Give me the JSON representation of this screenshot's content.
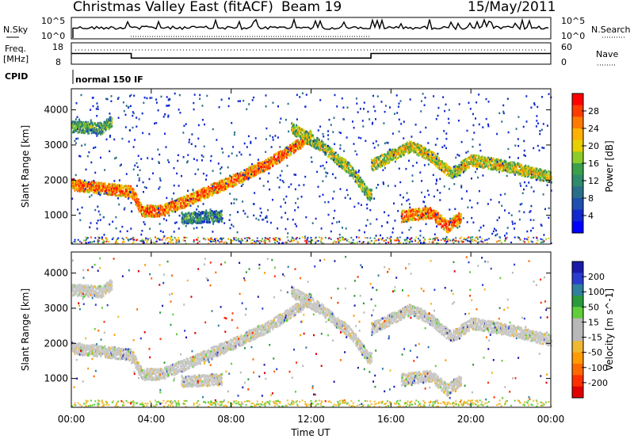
{
  "header": {
    "title": "Christmas Valley East (fitACF)",
    "beam": "Beam 19",
    "date": "15/May/2011"
  },
  "top_panels": {
    "nsky_label": "N.Sky",
    "nsearch_label": "N.Search",
    "count_ticks": [
      "10^5",
      "10^0"
    ],
    "freq_label": "Freq.",
    "freq_unit": "[MHz]",
    "freq_ticks": [
      "18",
      "8"
    ],
    "nave_label": "Nave",
    "nave_ticks": [
      "60",
      "0"
    ],
    "cpid_label": "CPID",
    "cpid_value": "normal 150 IF"
  },
  "x_axis": {
    "label": "Time UT",
    "ticks": [
      "00:00",
      "04:00",
      "08:00",
      "12:00",
      "16:00",
      "20:00",
      "00:00"
    ]
  },
  "power_panel": {
    "ylabel": "Slant Range [km]",
    "yticks": [
      "1000",
      "2000",
      "3000",
      "4000"
    ],
    "colorbar_label": "Power [dB]",
    "colorbar_ticks": [
      "28",
      "24",
      "20",
      "16",
      "12",
      "8",
      "4"
    ],
    "colorbar_colors": [
      "#ff0000",
      "#ff3b00",
      "#ff7a00",
      "#ffb000",
      "#e8d000",
      "#8ccc2a",
      "#3aa04a",
      "#2e8b6b",
      "#2a6f8a",
      "#1f4fb0",
      "#1028d0",
      "#0000ff"
    ]
  },
  "velocity_panel": {
    "ylabel": "Slant Range [km]",
    "yticks": [
      "1000",
      "2000",
      "3000",
      "4000"
    ],
    "colorbar_label": "Velocity [m s^-1]",
    "colorbar_ticks": [
      "200",
      "100",
      "50",
      "15",
      "-15",
      "-50",
      "-100",
      "-200"
    ],
    "colorbar_colors": [
      "#1a1aa8",
      "#2a3ccf",
      "#2f7f9f",
      "#2a9a3c",
      "#5fcf3a",
      "#b8b8b8",
      "#b8b8b8",
      "#f0b830",
      "#ff9a00",
      "#ff6a00",
      "#ff3000",
      "#e00000"
    ]
  },
  "chart_data": {
    "type": "heatmap",
    "x_range_hours": [
      0,
      24
    ],
    "y_range_km": [
      180,
      4600
    ],
    "nsky_step_hours": [
      0,
      24
    ],
    "freq_mhz": [
      {
        "x": 0.0,
        "y": 13.0
      },
      {
        "x": 3.0,
        "y": 13.0
      },
      {
        "x": 3.0,
        "y": 10.5
      },
      {
        "x": 15.0,
        "y": 10.5
      },
      {
        "x": 15.0,
        "y": 13.0
      },
      {
        "x": 24.0,
        "y": 13.0
      }
    ],
    "power_bands": [
      {
        "name": "ground-scatter-morning",
        "points": [
          [
            0.0,
            1900
          ],
          [
            1.5,
            1800
          ],
          [
            3.0,
            1700
          ],
          [
            3.5,
            1150
          ],
          [
            4.5,
            1150
          ],
          [
            6.0,
            1500
          ],
          [
            8.0,
            2000
          ],
          [
            10.0,
            2550
          ],
          [
            12.0,
            3300
          ]
        ],
        "power_db": 26
      },
      {
        "name": "ground-scatter-midday",
        "points": [
          [
            11.0,
            3500
          ],
          [
            12.5,
            3000
          ],
          [
            14.0,
            2300
          ],
          [
            14.8,
            1650
          ],
          [
            15.0,
            1600
          ]
        ],
        "power_db": 18
      },
      {
        "name": "far-range-early",
        "points": [
          [
            0.0,
            3550
          ],
          [
            1.5,
            3500
          ],
          [
            2.0,
            3700
          ]
        ],
        "power_db": 14
      },
      {
        "name": "afternoon-band",
        "points": [
          [
            15.0,
            2450
          ],
          [
            17.0,
            3000
          ],
          [
            18.0,
            2700
          ],
          [
            19.0,
            2200
          ],
          [
            20.0,
            2600
          ],
          [
            22.0,
            2400
          ],
          [
            24.0,
            2100
          ]
        ],
        "power_db": 20
      },
      {
        "name": "near-range-afternoon",
        "points": [
          [
            16.5,
            1000
          ],
          [
            18.0,
            1100
          ],
          [
            18.8,
            700
          ],
          [
            19.5,
            1000
          ]
        ],
        "power_db": 26
      },
      {
        "name": "ionospheric-patch",
        "points": [
          [
            5.5,
            950
          ],
          [
            7.5,
            1000
          ]
        ],
        "power_db": 12
      }
    ]
  }
}
